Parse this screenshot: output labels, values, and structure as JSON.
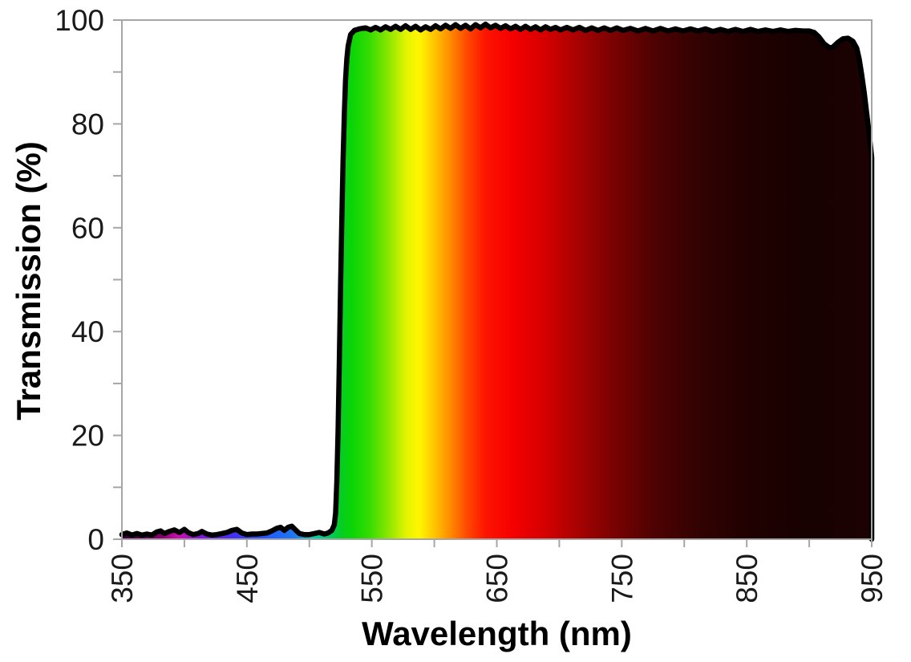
{
  "chart_data": {
    "type": "area",
    "title": "",
    "xlabel": "Wavelength (nm)",
    "ylabel": "Transmission (%)",
    "xlim": [
      350,
      950
    ],
    "ylim": [
      0,
      100
    ],
    "x_major_tick_labels": [
      350,
      450,
      550,
      650,
      750,
      850,
      950
    ],
    "x_tick_step": 50,
    "y_major_tick_labels": [
      0,
      20,
      40,
      60,
      80,
      100
    ],
    "y_tick_step": 10,
    "grid": false,
    "legend_position": "none",
    "line_color": "#000000",
    "frame_color": "#a6a6a6",
    "tick_color": "#a6a6a6",
    "label_color": "#1a1a1a",
    "fill_gradient": [
      {
        "wavelength": 350,
        "color": "#38003a"
      },
      {
        "wavelength": 382,
        "color": "#8a0070"
      },
      {
        "wavelength": 395,
        "color": "#cc10aa"
      },
      {
        "wavelength": 412,
        "color": "#8812dd"
      },
      {
        "wavelength": 438,
        "color": "#4430ee"
      },
      {
        "wavelength": 465,
        "color": "#2458ff"
      },
      {
        "wavelength": 488,
        "color": "#1e78f0"
      },
      {
        "wavelength": 503,
        "color": "#00d2b4"
      },
      {
        "wavelength": 516,
        "color": "#00cc66"
      },
      {
        "wavelength": 526,
        "color": "#07cd1e"
      },
      {
        "wavelength": 534,
        "color": "#0ad506"
      },
      {
        "wavelength": 548,
        "color": "#35dc02"
      },
      {
        "wavelength": 563,
        "color": "#8ae600"
      },
      {
        "wavelength": 578,
        "color": "#e6f400"
      },
      {
        "wavelength": 588,
        "color": "#fff600"
      },
      {
        "wavelength": 601,
        "color": "#ffc000"
      },
      {
        "wavelength": 613,
        "color": "#ff8a00"
      },
      {
        "wavelength": 626,
        "color": "#ff4a00"
      },
      {
        "wavelength": 641,
        "color": "#fd1400"
      },
      {
        "wavelength": 662,
        "color": "#f60000"
      },
      {
        "wavelength": 688,
        "color": "#d60000"
      },
      {
        "wavelength": 712,
        "color": "#ac0202"
      },
      {
        "wavelength": 742,
        "color": "#7c0202"
      },
      {
        "wavelength": 776,
        "color": "#4e0202"
      },
      {
        "wavelength": 812,
        "color": "#320202"
      },
      {
        "wavelength": 852,
        "color": "#200101"
      },
      {
        "wavelength": 902,
        "color": "#170101"
      },
      {
        "wavelength": 950,
        "color": "#1d0202"
      }
    ],
    "series": [
      {
        "name": "Transmission",
        "points": [
          [
            350,
            0.9
          ],
          [
            354,
            1.2
          ],
          [
            358,
            0.8
          ],
          [
            362,
            1.1
          ],
          [
            366,
            0.8
          ],
          [
            370,
            1.0
          ],
          [
            374,
            0.8
          ],
          [
            378,
            1.4
          ],
          [
            381,
            1.6
          ],
          [
            384,
            1.1
          ],
          [
            388,
            1.5
          ],
          [
            392,
            1.8
          ],
          [
            396,
            1.3
          ],
          [
            400,
            1.9
          ],
          [
            403,
            1.3
          ],
          [
            407,
            0.9
          ],
          [
            411,
            1.1
          ],
          [
            414,
            1.5
          ],
          [
            418,
            1.0
          ],
          [
            422,
            0.8
          ],
          [
            426,
            0.9
          ],
          [
            430,
            1.1
          ],
          [
            434,
            1.3
          ],
          [
            438,
            1.7
          ],
          [
            442,
            1.9
          ],
          [
            446,
            1.2
          ],
          [
            450,
            0.9
          ],
          [
            454,
            1.0
          ],
          [
            458,
            1.0
          ],
          [
            462,
            1.1
          ],
          [
            466,
            1.2
          ],
          [
            470,
            1.6
          ],
          [
            474,
            2.1
          ],
          [
            477,
            2.3
          ],
          [
            480,
            1.7
          ],
          [
            483,
            2.3
          ],
          [
            486,
            2.5
          ],
          [
            489,
            1.8
          ],
          [
            492,
            1.1
          ],
          [
            496,
            0.9
          ],
          [
            500,
            0.9
          ],
          [
            504,
            1.1
          ],
          [
            508,
            1.3
          ],
          [
            512,
            1.0
          ],
          [
            515,
            1.2
          ],
          [
            518,
            1.7
          ],
          [
            520,
            2.8
          ],
          [
            521,
            5
          ],
          [
            522,
            11
          ],
          [
            523,
            21
          ],
          [
            524,
            34
          ],
          [
            525,
            49
          ],
          [
            526,
            62
          ],
          [
            527,
            73
          ],
          [
            528,
            82
          ],
          [
            529,
            88.5
          ],
          [
            530,
            92.5
          ],
          [
            531,
            95
          ],
          [
            533,
            97.2
          ],
          [
            536,
            98.0
          ],
          [
            540,
            98.3
          ],
          [
            545,
            98.5
          ],
          [
            549,
            98.1
          ],
          [
            553,
            98.6
          ],
          [
            557,
            98.1
          ],
          [
            561,
            98.7
          ],
          [
            565,
            98.2
          ],
          [
            569,
            98.8
          ],
          [
            573,
            98.2
          ],
          [
            577,
            98.9
          ],
          [
            581,
            98.2
          ],
          [
            585,
            98.8
          ],
          [
            589,
            98.1
          ],
          [
            593,
            98.7
          ],
          [
            597,
            98.2
          ],
          [
            601,
            98.9
          ],
          [
            605,
            98.3
          ],
          [
            609,
            99.0
          ],
          [
            613,
            98.4
          ],
          [
            617,
            99.1
          ],
          [
            621,
            98.4
          ],
          [
            625,
            99.0
          ],
          [
            629,
            98.3
          ],
          [
            633,
            99.1
          ],
          [
            637,
            98.5
          ],
          [
            641,
            99.2
          ],
          [
            645,
            98.5
          ],
          [
            649,
            99.0
          ],
          [
            653,
            98.4
          ],
          [
            657,
            98.9
          ],
          [
            661,
            98.3
          ],
          [
            665,
            98.8
          ],
          [
            669,
            98.2
          ],
          [
            673,
            98.8
          ],
          [
            677,
            98.2
          ],
          [
            681,
            98.7
          ],
          [
            685,
            98.1
          ],
          [
            689,
            98.7
          ],
          [
            693,
            98.2
          ],
          [
            697,
            98.6
          ],
          [
            701,
            98.1
          ],
          [
            706,
            98.6
          ],
          [
            711,
            98.1
          ],
          [
            716,
            98.6
          ],
          [
            721,
            98.0
          ],
          [
            726,
            98.5
          ],
          [
            731,
            98.0
          ],
          [
            736,
            98.5
          ],
          [
            741,
            98.0
          ],
          [
            746,
            98.5
          ],
          [
            751,
            98.0
          ],
          [
            757,
            98.4
          ],
          [
            763,
            97.9
          ],
          [
            769,
            98.4
          ],
          [
            775,
            97.9
          ],
          [
            781,
            98.4
          ],
          [
            787,
            97.9
          ],
          [
            793,
            98.3
          ],
          [
            799,
            97.9
          ],
          [
            805,
            98.3
          ],
          [
            811,
            97.9
          ],
          [
            817,
            98.3
          ],
          [
            823,
            97.8
          ],
          [
            829,
            98.2
          ],
          [
            835,
            97.8
          ],
          [
            841,
            98.2
          ],
          [
            847,
            97.8
          ],
          [
            853,
            98.2
          ],
          [
            859,
            97.8
          ],
          [
            865,
            98.1
          ],
          [
            871,
            97.8
          ],
          [
            877,
            98.1
          ],
          [
            883,
            97.8
          ],
          [
            889,
            98.0
          ],
          [
            895,
            97.9
          ],
          [
            900,
            97.9
          ],
          [
            904,
            97.6
          ],
          [
            908,
            96.7
          ],
          [
            912,
            95.4
          ],
          [
            916,
            94.7
          ],
          [
            919,
            94.8
          ],
          [
            923,
            95.7
          ],
          [
            927,
            96.4
          ],
          [
            931,
            96.5
          ],
          [
            935,
            95.9
          ],
          [
            938,
            94.6
          ],
          [
            940,
            92.5
          ],
          [
            942,
            89.5
          ],
          [
            944,
            86.0
          ],
          [
            946,
            82.0
          ],
          [
            948,
            78.0
          ],
          [
            950,
            73.5
          ]
        ]
      }
    ]
  }
}
